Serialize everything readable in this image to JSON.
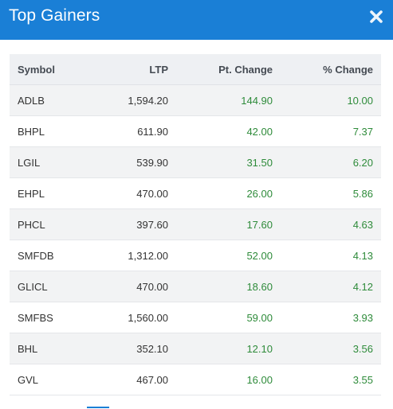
{
  "modal": {
    "title": "Top Gainers",
    "close_icon": "close-icon",
    "accent_color": "#1a7fd6",
    "positive_color": "#2e8b3a"
  },
  "table": {
    "headers": {
      "symbol": "Symbol",
      "ltp": "LTP",
      "pt_change": "Pt. Change",
      "pct_change": "% Change"
    },
    "rows": [
      {
        "symbol": "ADLB",
        "ltp": "1,594.20",
        "pt_change": "144.90",
        "pct_change": "10.00"
      },
      {
        "symbol": "BHPL",
        "ltp": "611.90",
        "pt_change": "42.00",
        "pct_change": "7.37"
      },
      {
        "symbol": "LGIL",
        "ltp": "539.90",
        "pt_change": "31.50",
        "pct_change": "6.20"
      },
      {
        "symbol": "EHPL",
        "ltp": "470.00",
        "pt_change": "26.00",
        "pct_change": "5.86"
      },
      {
        "symbol": "PHCL",
        "ltp": "397.60",
        "pt_change": "17.60",
        "pct_change": "4.63"
      },
      {
        "symbol": "SMFDB",
        "ltp": "1,312.00",
        "pt_change": "52.00",
        "pct_change": "4.13"
      },
      {
        "symbol": "GLICL",
        "ltp": "470.00",
        "pt_change": "18.60",
        "pct_change": "4.12"
      },
      {
        "symbol": "SMFBS",
        "ltp": "1,560.00",
        "pt_change": "59.00",
        "pct_change": "3.93"
      },
      {
        "symbol": "BHL",
        "ltp": "352.10",
        "pt_change": "12.10",
        "pct_change": "3.56"
      },
      {
        "symbol": "GVL",
        "ltp": "467.00",
        "pt_change": "16.00",
        "pct_change": "3.55"
      }
    ]
  }
}
